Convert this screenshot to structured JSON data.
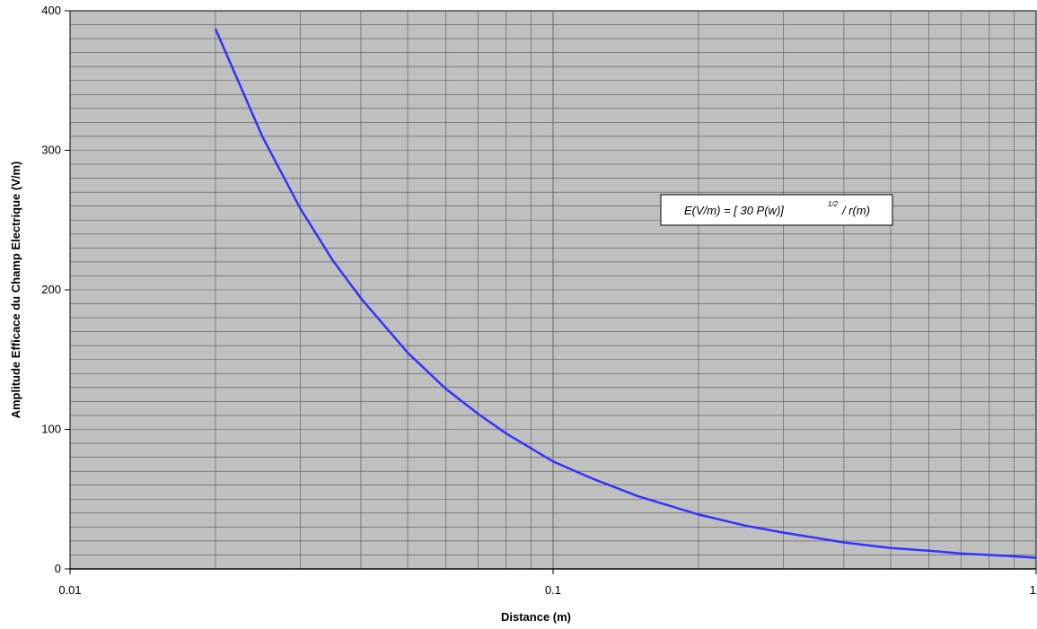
{
  "chart_data": {
    "type": "line",
    "xlabel": "Distance (m)",
    "ylabel": "Amplitude Efficace du Champ Electrique (V/m)",
    "x_scale": "log",
    "xlim": [
      0.01,
      1
    ],
    "ylim": [
      0,
      400
    ],
    "x_ticks": [
      "0.01",
      "0.1",
      "1"
    ],
    "y_ticks": [
      "0",
      "100",
      "200",
      "300",
      "400"
    ],
    "grid": true,
    "plot_background": "#c0c0c0",
    "line_color": "#3333ff",
    "annotation": {
      "main": "E(V/m) = [    30 P(w)]",
      "superscript": "1/2",
      "tail": "/ r(m)"
    },
    "series": [
      {
        "x": [
          0.02,
          0.025,
          0.03,
          0.035,
          0.04,
          0.05,
          0.06,
          0.07,
          0.08,
          0.1,
          0.12,
          0.15,
          0.2,
          0.25,
          0.3,
          0.4,
          0.5,
          0.6,
          0.7,
          0.8,
          0.9,
          1.0
        ],
        "values": [
          387,
          310,
          258,
          221,
          194,
          155,
          129,
          111,
          97,
          77,
          65,
          52,
          39,
          31,
          26,
          19,
          15,
          13,
          11,
          10,
          9,
          8
        ]
      }
    ]
  }
}
